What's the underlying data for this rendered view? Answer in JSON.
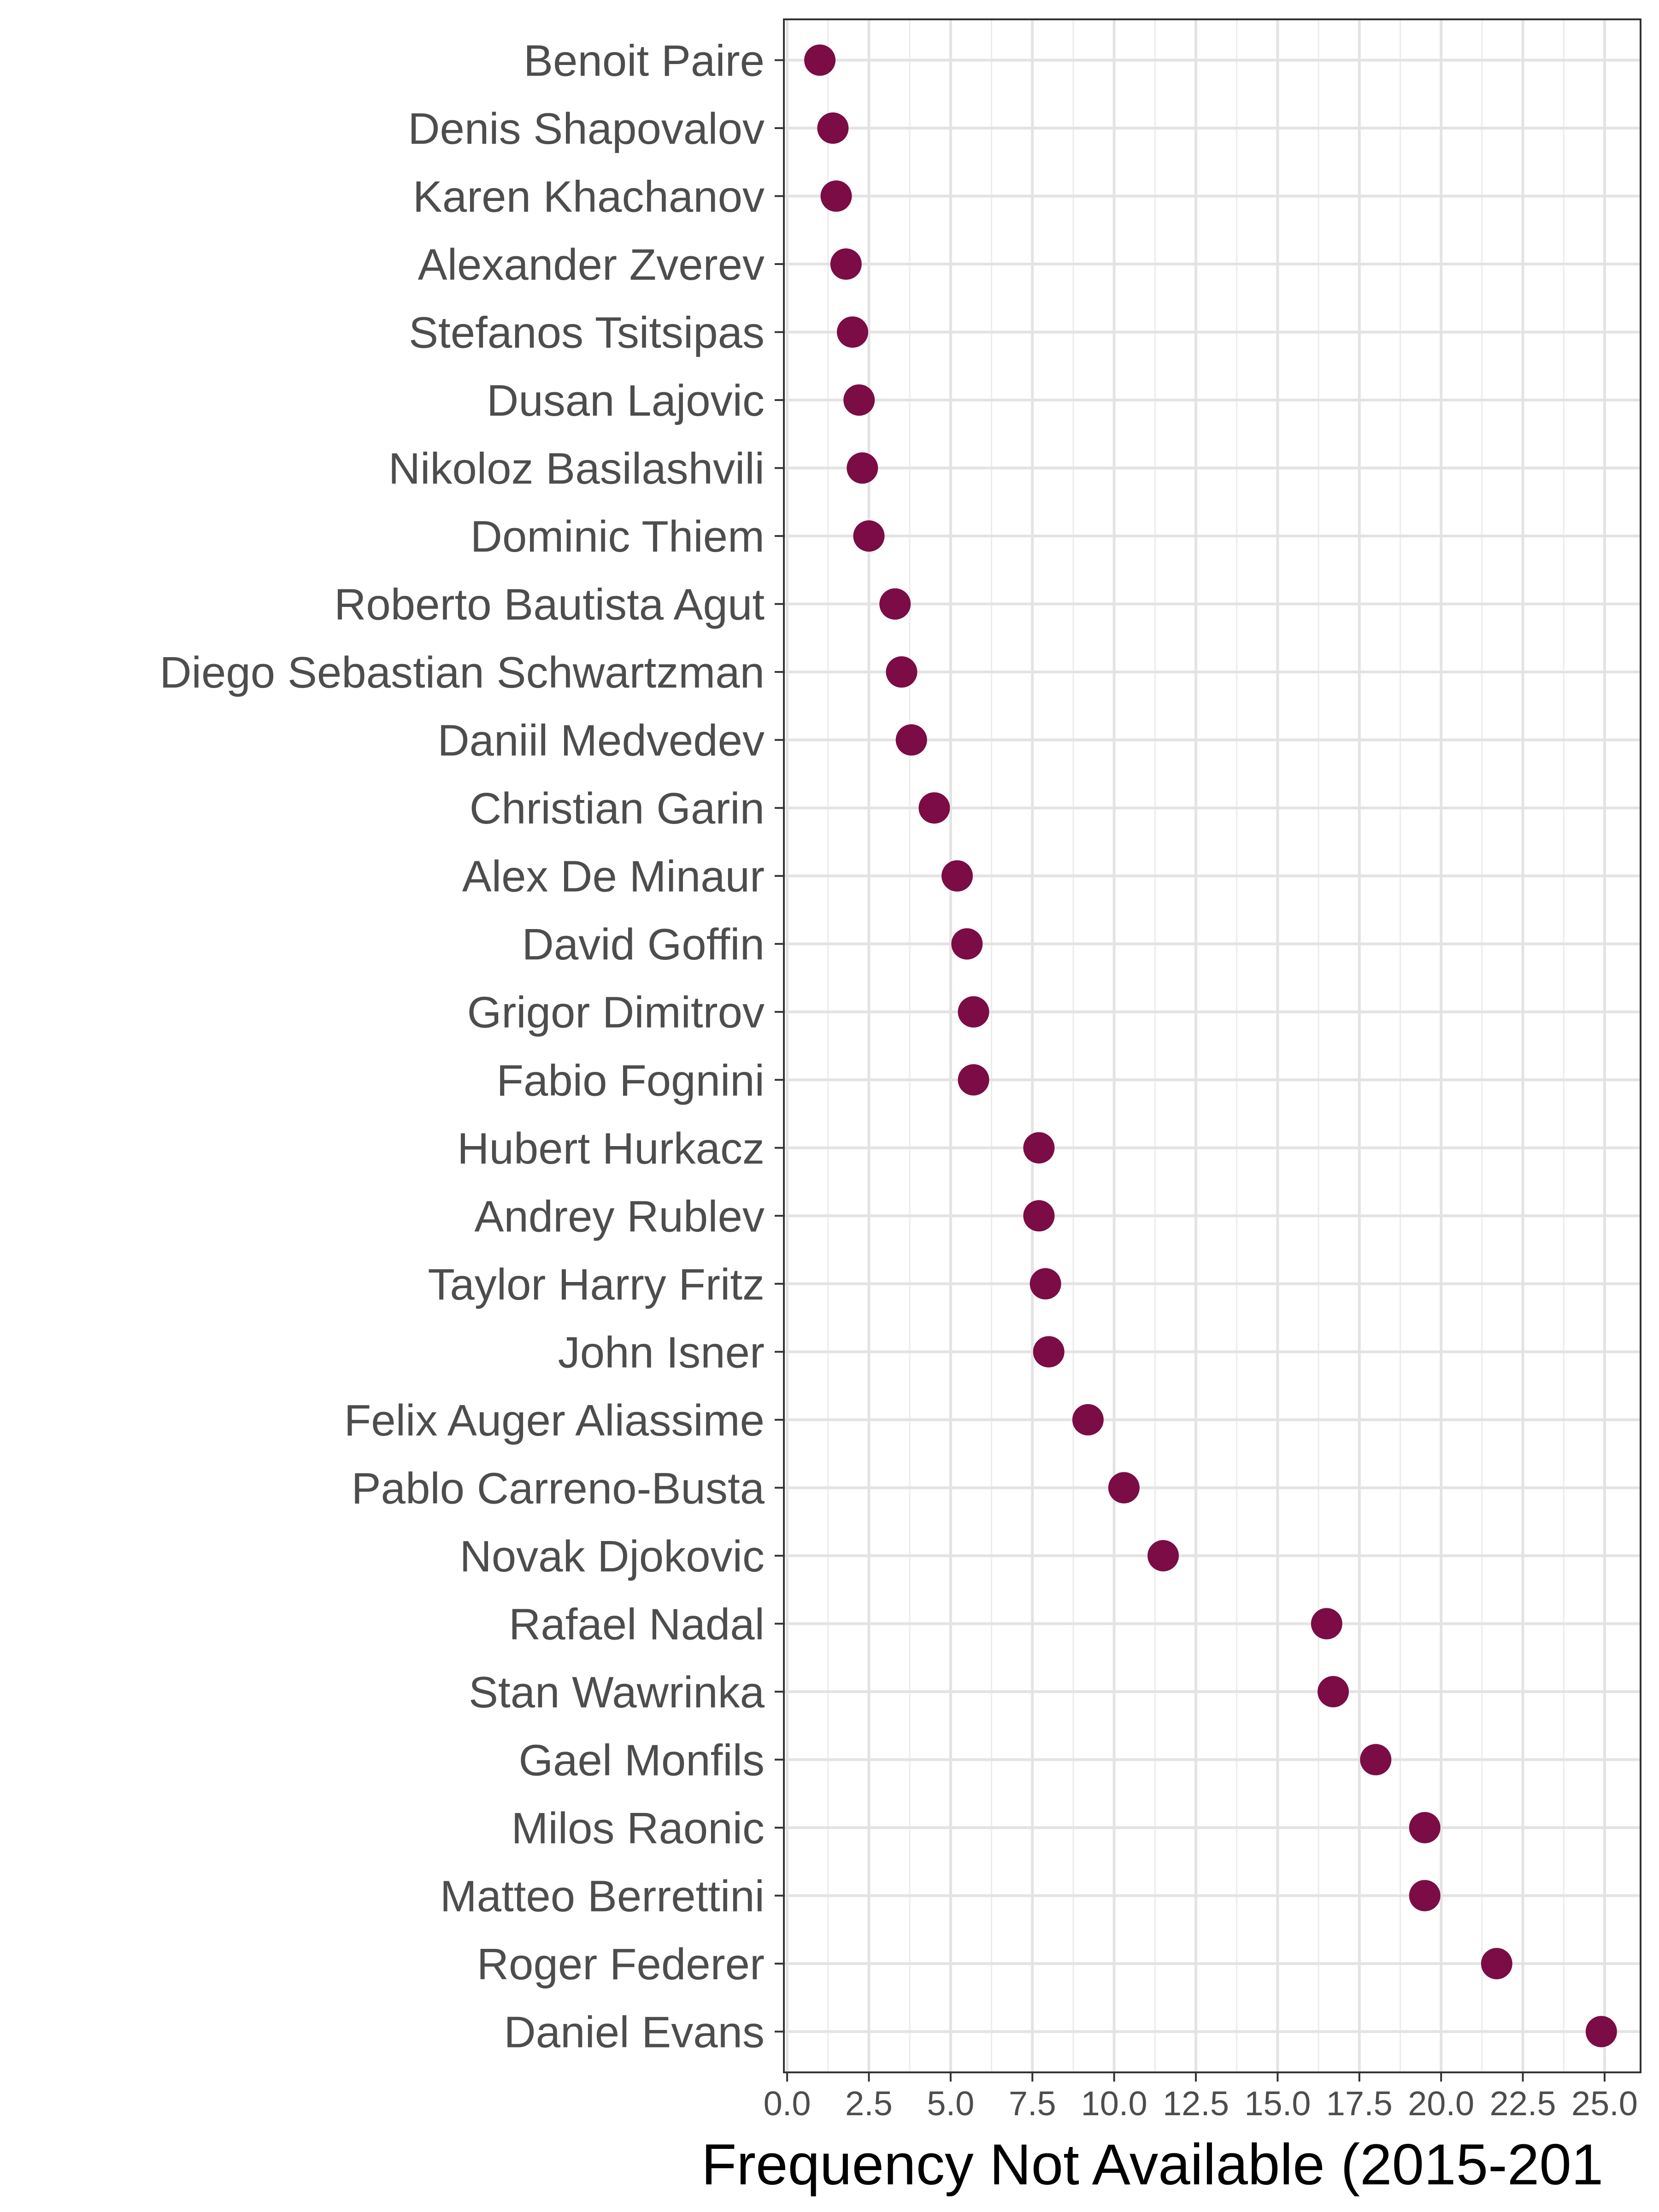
{
  "chart_data": {
    "type": "scatter",
    "orientation": "horizontal",
    "xlabel": "Frequency Not Available (2015-201",
    "ylabel": "",
    "title": "",
    "xlim": [
      -0.1,
      26.1
    ],
    "xticks": [
      "0.0",
      "2.5",
      "5.0",
      "7.5",
      "10.0",
      "12.5",
      "15.0",
      "17.5",
      "20.0",
      "22.5",
      "25.0"
    ],
    "xtick_values": [
      0,
      2.5,
      5,
      7.5,
      10,
      12.5,
      15,
      17.5,
      20,
      22.5,
      25
    ],
    "grid": true,
    "point_color": "#7b0c45",
    "categories": [
      "Benoit Paire",
      "Denis Shapovalov",
      "Karen Khachanov",
      "Alexander Zverev",
      "Stefanos Tsitsipas",
      "Dusan Lajovic",
      "Nikoloz Basilashvili",
      "Dominic Thiem",
      "Roberto Bautista Agut",
      "Diego Sebastian Schwartzman",
      "Daniil Medvedev",
      "Christian Garin",
      "Alex De Minaur",
      "David Goffin",
      "Grigor Dimitrov",
      "Fabio Fognini",
      "Hubert Hurkacz",
      "Andrey Rublev",
      "Taylor Harry Fritz",
      "John Isner",
      "Felix Auger Aliassime",
      "Pablo Carreno-Busta",
      "Novak Djokovic",
      "Rafael Nadal",
      "Stan Wawrinka",
      "Gael Monfils",
      "Milos Raonic",
      "Matteo Berrettini",
      "Roger Federer",
      "Daniel Evans"
    ],
    "values": [
      1.0,
      1.4,
      1.5,
      1.8,
      2.0,
      2.2,
      2.3,
      2.5,
      3.3,
      3.5,
      3.8,
      4.5,
      5.2,
      5.5,
      5.7,
      5.7,
      7.7,
      7.7,
      7.9,
      8.0,
      9.2,
      10.3,
      11.5,
      16.5,
      16.7,
      18.0,
      19.5,
      19.5,
      21.7,
      24.9
    ]
  }
}
